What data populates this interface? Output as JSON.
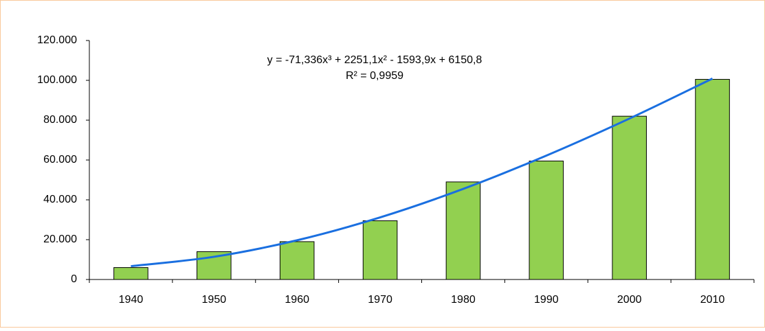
{
  "chart_data": {
    "type": "bar",
    "categories": [
      "1940",
      "1950",
      "1960",
      "1970",
      "1980",
      "1990",
      "2000",
      "2010"
    ],
    "values": [
      6000,
      14000,
      19000,
      29500,
      49000,
      59500,
      82000,
      100500
    ],
    "color": "#92d050",
    "trendline": {
      "color": "#1a6fe0",
      "values": [
        6700,
        11400,
        19700,
        31200,
        45500,
        62200,
        80800,
        100900
      ]
    },
    "annotations": [
      "y = -71,336x³ + 2251,1x² - 1593,9x + 6150,8",
      "R² = 0,9959"
    ],
    "ylim": [
      0,
      120000
    ],
    "yticks": [
      0,
      {
        "value": 20000,
        "label": "20.000"
      },
      {
        "value": 40000,
        "label": "40.000"
      },
      {
        "value": 60000,
        "label": "60.000"
      },
      {
        "value": 80000,
        "label": "80.000"
      },
      {
        "value": 100000,
        "label": "100.000"
      },
      {
        "value": 120000,
        "label": "120.000"
      }
    ],
    "grid": false
  }
}
